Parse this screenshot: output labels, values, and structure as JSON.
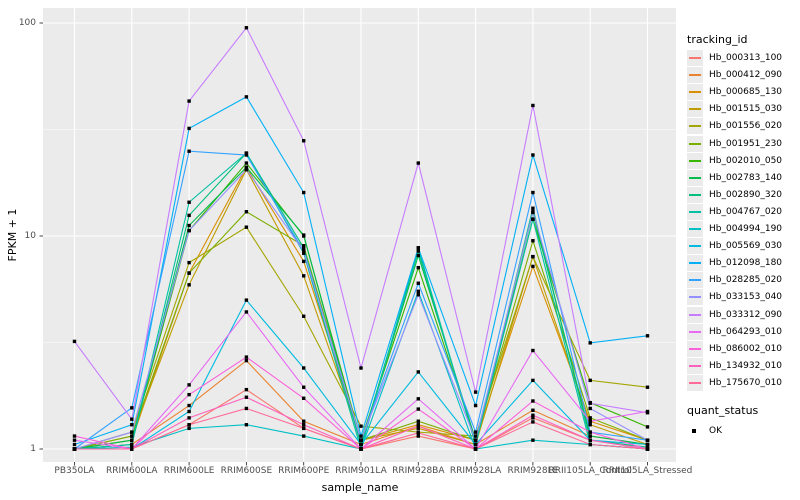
{
  "figure": {
    "y_axis_title": "FPKM + 1",
    "x_axis_title": "sample_name",
    "legend_title": "tracking_id",
    "quant_legend_title": "quant_status",
    "quant_ok_label": "OK"
  },
  "chart_data": {
    "type": "line",
    "title": "",
    "xlabel": "sample_name",
    "ylabel": "FPKM + 1",
    "y_scale": "log10",
    "ylim": [
      0.87,
      120
    ],
    "y_major_ticks": [
      1,
      10,
      100
    ],
    "y_minor_gridlines": [
      3.1623,
      31.623
    ],
    "grid": true,
    "panel_background": "#EBEBEB",
    "gridline_color": "#FFFFFF",
    "legend_position": "right",
    "legend_title": "tracking_id",
    "point_legend": {
      "title": "quant_status",
      "items": [
        {
          "label": "OK",
          "marker": "black-square"
        }
      ]
    },
    "point_color": "#000000",
    "categories": [
      "PB350LA",
      "RRIM600LA",
      "RRIM600LE",
      "RRIM600SE",
      "RRIM600PE",
      "RRIM901LA",
      "RRIM928BA",
      "RRIM928LA",
      "RRIM928LE",
      "RRII105LA_Control",
      "RRII105LA_Stressed"
    ],
    "series": [
      {
        "name": "Hb_000313_100",
        "color": "#F8766D",
        "values": [
          1.0,
          1.0,
          1.3,
          1.9,
          1.25,
          1.0,
          1.15,
          1.0,
          1.4,
          1.1,
          1.0
        ]
      },
      {
        "name": "Hb_000412_090",
        "color": "#EA8331",
        "values": [
          1.0,
          1.05,
          1.6,
          2.6,
          1.35,
          1.05,
          1.28,
          1.05,
          1.52,
          1.15,
          1.05
        ]
      },
      {
        "name": "Hb_000685_130",
        "color": "#D89000",
        "values": [
          1.0,
          1.1,
          6.7,
          21.0,
          7.6,
          1.1,
          1.3,
          1.1,
          7.2,
          1.35,
          1.1
        ]
      },
      {
        "name": "Hb_001515_030",
        "color": "#C09B00",
        "values": [
          1.0,
          1.15,
          5.9,
          20.5,
          6.5,
          1.1,
          1.25,
          1.05,
          8.0,
          1.3,
          1.05
        ]
      },
      {
        "name": "Hb_001556_020",
        "color": "#A3A500",
        "values": [
          1.0,
          1.2,
          7.5,
          11.0,
          4.2,
          1.28,
          1.2,
          1.15,
          8.0,
          2.1,
          1.95
        ]
      },
      {
        "name": "Hb_001951_230",
        "color": "#7CAE00",
        "values": [
          1.0,
          1.15,
          6.7,
          13.0,
          9.0,
          1.1,
          1.35,
          1.1,
          9.5,
          1.4,
          1.1
        ]
      },
      {
        "name": "Hb_002010_050",
        "color": "#39B600",
        "values": [
          1.0,
          1.1,
          10.6,
          22.0,
          10.0,
          1.1,
          7.1,
          1.1,
          12.0,
          1.65,
          1.27
        ]
      },
      {
        "name": "Hb_002783_140",
        "color": "#00BB4E",
        "values": [
          1.0,
          1.1,
          11.2,
          21.0,
          10.1,
          1.05,
          8.1,
          1.1,
          12.9,
          1.15,
          1.05
        ]
      },
      {
        "name": "Hb_002890_320",
        "color": "#00BF7D",
        "values": [
          1.0,
          1.05,
          12.5,
          24.5,
          8.8,
          1.05,
          8.5,
          1.05,
          13.5,
          1.1,
          1.02
        ]
      },
      {
        "name": "Hb_004767_020",
        "color": "#00C1A3",
        "values": [
          1.0,
          1.05,
          14.4,
          24.5,
          8.3,
          1.0,
          8.8,
          1.05,
          12.0,
          1.05,
          1.0
        ]
      },
      {
        "name": "Hb_004994_190",
        "color": "#00BFC4",
        "values": [
          1.0,
          1.02,
          1.25,
          1.3,
          1.15,
          1.0,
          5.5,
          1.0,
          1.1,
          1.05,
          1.0
        ]
      },
      {
        "name": "Hb_005569_030",
        "color": "#00BAE0",
        "values": [
          1.0,
          1.0,
          1.5,
          5.0,
          2.4,
          1.05,
          2.3,
          1.05,
          2.1,
          1.1,
          1.05
        ]
      },
      {
        "name": "Hb_012098_180",
        "color": "#00B0F6",
        "values": [
          1.05,
          1.3,
          32.0,
          45.0,
          16.0,
          1.15,
          8.8,
          1.6,
          24.0,
          3.15,
          3.4
        ]
      },
      {
        "name": "Hb_028285_020",
        "color": "#35A2FF",
        "values": [
          1.0,
          1.56,
          25.0,
          24.0,
          8.5,
          1.1,
          6.0,
          1.2,
          16.0,
          1.2,
          1.1
        ]
      },
      {
        "name": "Hb_033153_040",
        "color": "#9590FF",
        "values": [
          1.0,
          1.2,
          10.6,
          20.5,
          8.5,
          1.1,
          5.3,
          1.1,
          13.0,
          1.55,
          1.1
        ]
      },
      {
        "name": "Hb_033312_090",
        "color": "#C77CFF",
        "values": [
          3.2,
          1.38,
          43.0,
          95.0,
          28.0,
          2.4,
          22.0,
          1.85,
          41.0,
          1.64,
          1.48
        ]
      },
      {
        "name": "Hb_064293_010",
        "color": "#E76BF3",
        "values": [
          1.1,
          1.0,
          2.0,
          4.4,
          1.95,
          1.0,
          1.72,
          1.0,
          2.9,
          1.35,
          1.5
        ]
      },
      {
        "name": "Hb_086002_010",
        "color": "#FA62DB",
        "values": [
          1.15,
          1.0,
          1.8,
          2.7,
          1.73,
          1.0,
          1.54,
          1.0,
          1.68,
          1.2,
          1.0
        ]
      },
      {
        "name": "Hb_134932_010",
        "color": "#FF62BC",
        "values": [
          1.0,
          1.0,
          1.4,
          1.75,
          1.3,
          1.0,
          1.28,
          1.0,
          1.44,
          1.1,
          1.0
        ]
      },
      {
        "name": "Hb_175670_010",
        "color": "#FF6A98",
        "values": [
          1.0,
          1.0,
          1.3,
          1.55,
          1.25,
          1.0,
          1.19,
          1.0,
          1.34,
          1.05,
          1.0
        ]
      }
    ]
  }
}
